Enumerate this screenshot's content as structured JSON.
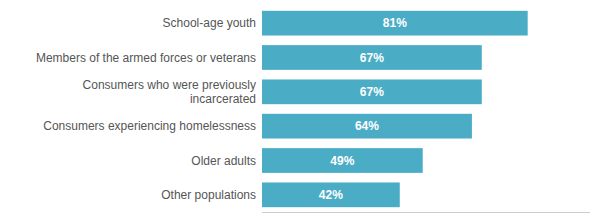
{
  "chart_data": {
    "type": "bar",
    "orientation": "horizontal",
    "categories": [
      "Other populations",
      "Older adults",
      "Consumers experiencing homelessness",
      "Consumers who were previously\nincarcerated",
      "Members of the armed forces or veterans",
      "School-age youth"
    ],
    "values": [
      42,
      49,
      64,
      67,
      67,
      81
    ],
    "value_labels": [
      "42%",
      "49%",
      "64%",
      "67%",
      "67%",
      "81%"
    ],
    "color": "#4BACC6",
    "xlim": [
      0,
      100
    ],
    "data_labels": true,
    "tick_labels": "y",
    "grid": false
  }
}
